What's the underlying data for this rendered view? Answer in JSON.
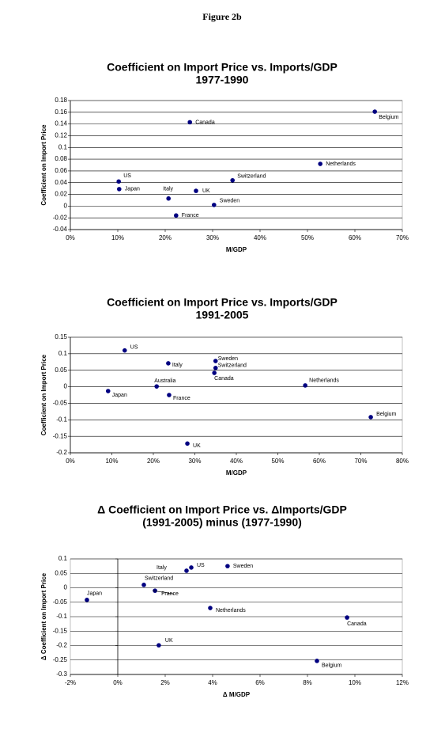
{
  "title": "Figure 2b",
  "chart_data": [
    {
      "type": "scatter",
      "title": "Coefficient on Import Price vs. Imports/GDP",
      "subtitle": "1977-1990",
      "x_label": "M/GDP",
      "y_label": "Coefficient on Import Price",
      "color": "#000080",
      "grid": true,
      "labels": [
        "US",
        "Japan",
        "Canada",
        "Belgium",
        "Netherlands",
        "Switzerland",
        "Italy",
        "UK",
        "Sweden",
        "France"
      ],
      "x": [
        10.2,
        10.3,
        25.2,
        64.2,
        52.7,
        34.2,
        20.7,
        26.5,
        30.3,
        22.3
      ],
      "values": [
        0.042,
        0.029,
        0.143,
        0.161,
        0.072,
        0.044,
        0.013,
        0.026,
        0.002,
        -0.016
      ],
      "xlim": [
        0,
        70
      ],
      "xticks": [
        {
          "value": 0,
          "label": "0%"
        },
        {
          "value": 10,
          "label": "10%"
        },
        {
          "value": 20,
          "label": "20%"
        },
        {
          "value": 30,
          "label": "30%"
        },
        {
          "value": 40,
          "label": "40%"
        },
        {
          "value": 50,
          "label": "50%"
        },
        {
          "value": 60,
          "label": "60%"
        },
        {
          "value": 70,
          "label": "70%"
        }
      ],
      "ylim": [
        -0.04,
        0.18
      ],
      "yticks": [
        -0.04,
        -0.02,
        0,
        0.02,
        0.04,
        0.06,
        0.08,
        0.1,
        0.12,
        0.14,
        0.16,
        0.18
      ]
    },
    {
      "type": "scatter",
      "title": "Coefficient on Import Price vs. Imports/GDP",
      "subtitle": "1991-2005",
      "x_label": "M/GDP",
      "y_label": "Coefficient on Import Price",
      "color": "#000080",
      "grid": true,
      "labels": [
        "US",
        "Italy",
        "Sweden",
        "Switzerland",
        "Canada",
        "Australia",
        "Netherlands",
        "Japan",
        "France",
        "Belgium",
        "UK"
      ],
      "x": [
        13.1,
        23.6,
        35.0,
        35.0,
        34.7,
        20.8,
        56.6,
        9.1,
        23.8,
        72.4,
        28.2
      ],
      "values": [
        0.11,
        0.071,
        0.078,
        0.057,
        0.042,
        0.001,
        0.004,
        -0.013,
        -0.025,
        -0.092,
        -0.172
      ],
      "xlim": [
        0,
        80
      ],
      "xticks": [
        {
          "value": 0,
          "label": "0%"
        },
        {
          "value": 10,
          "label": "10%"
        },
        {
          "value": 20,
          "label": "20%"
        },
        {
          "value": 30,
          "label": "30%"
        },
        {
          "value": 40,
          "label": "40%"
        },
        {
          "value": 50,
          "label": "50%"
        },
        {
          "value": 60,
          "label": "60%"
        },
        {
          "value": 70,
          "label": "70%"
        },
        {
          "value": 80,
          "label": "80%"
        }
      ],
      "ylim": [
        -0.2,
        0.15
      ],
      "yticks": [
        -0.2,
        -0.15,
        -0.1,
        -0.05,
        0,
        0.05,
        0.1,
        0.15
      ]
    },
    {
      "type": "scatter",
      "title": "Δ Coefficient on Import Price vs. ΔImports/GDP",
      "subtitle": "(1991-2005) minus (1977-1990)",
      "x_label": "Δ M/GDP",
      "y_label": "Δ Coefficient on Import Price",
      "color": "#000080",
      "grid": true,
      "labels": [
        "Japan",
        "Switzerland",
        "France",
        "Italy",
        "US",
        "Sweden",
        "Netherlands",
        "Canada",
        "UK",
        "Belgium"
      ],
      "x": [
        -1.3,
        1.1,
        1.57,
        2.9,
        3.1,
        4.63,
        3.9,
        9.67,
        1.73,
        8.4
      ],
      "values": [
        -0.042,
        0.01,
        -0.01,
        0.059,
        0.07,
        0.075,
        -0.07,
        -0.103,
        -0.199,
        -0.253
      ],
      "xlim": [
        -2,
        12
      ],
      "xticks": [
        {
          "value": -2,
          "label": "-2%"
        },
        {
          "value": 0,
          "label": "0%"
        },
        {
          "value": 2,
          "label": "2%"
        },
        {
          "value": 4,
          "label": "4%"
        },
        {
          "value": 6,
          "label": "6%"
        },
        {
          "value": 8,
          "label": "8%"
        },
        {
          "value": 10,
          "label": "10%"
        },
        {
          "value": 12,
          "label": "12%"
        }
      ],
      "ylim": [
        -0.3,
        0.1
      ],
      "yticks": [
        -0.3,
        -0.25,
        -0.2,
        -0.15,
        -0.1,
        -0.05,
        0,
        0.05,
        0.1
      ]
    }
  ]
}
